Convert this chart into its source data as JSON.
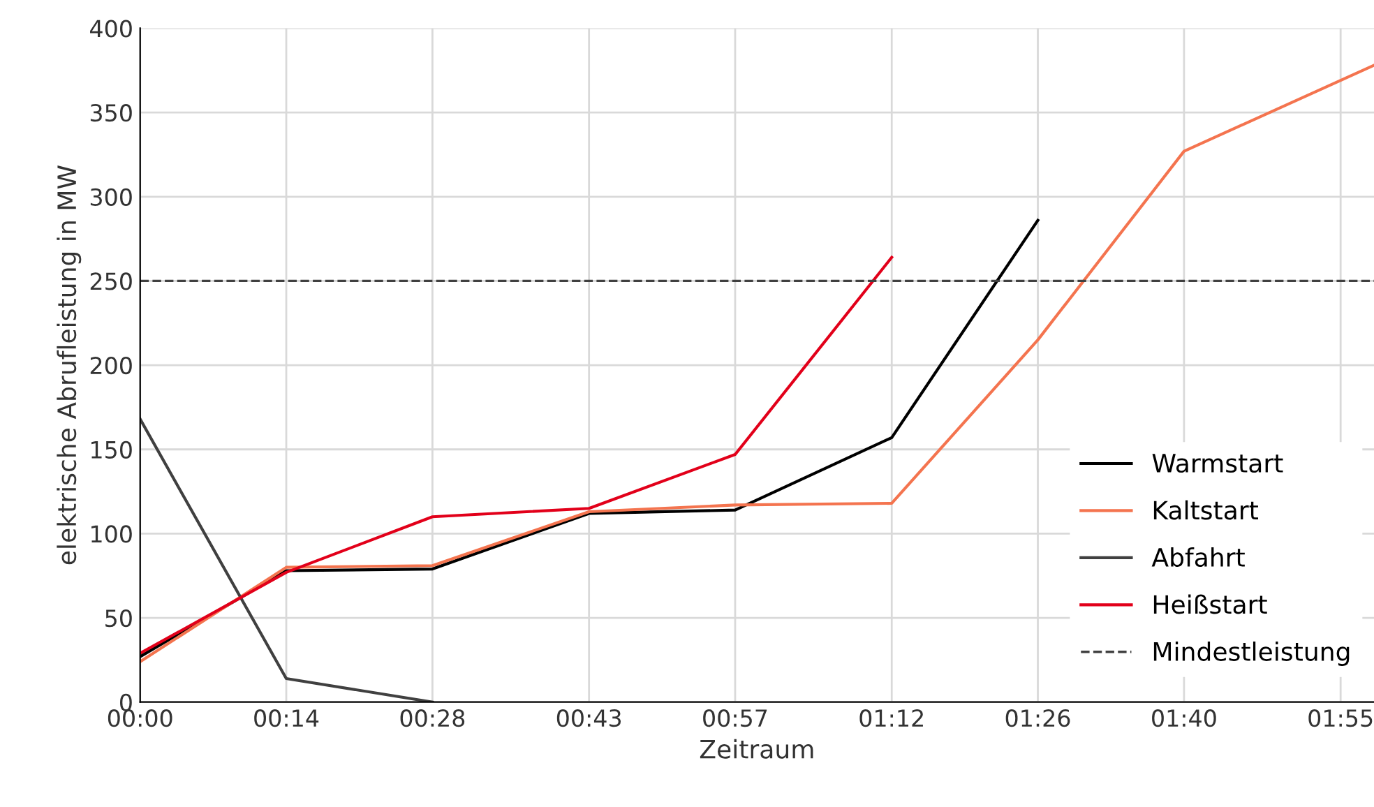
{
  "chart_data": {
    "type": "line",
    "xlabel": "Zeitraum",
    "ylabel": "elektrische Abrufleistung in MW",
    "xlim": [
      0,
      1.97
    ],
    "ylim": [
      0,
      400
    ],
    "xticks": [
      {
        "value": 0,
        "label": "00:00"
      },
      {
        "value": 0.2333,
        "label": "00:14"
      },
      {
        "value": 0.4667,
        "label": "00:28"
      },
      {
        "value": 0.7167,
        "label": "00:43"
      },
      {
        "value": 0.95,
        "label": "00:57"
      },
      {
        "value": 1.2,
        "label": "01:12"
      },
      {
        "value": 1.4333,
        "label": "01:26"
      },
      {
        "value": 1.6667,
        "label": "01:40"
      },
      {
        "value": 1.9167,
        "label": "01:55"
      }
    ],
    "yticks": [
      0,
      50,
      100,
      150,
      200,
      250,
      300,
      350,
      400
    ],
    "series": [
      {
        "name": "Warmstart",
        "color": "#000000",
        "x": [
          0,
          0.2333,
          0.4667,
          0.7167,
          0.95,
          1.2,
          1.4333
        ],
        "values": [
          27,
          78,
          79,
          112,
          114,
          157,
          286
        ]
      },
      {
        "name": "Kaltstart",
        "color": "#f4744f",
        "x": [
          0,
          0.2333,
          0.4667,
          0.7167,
          0.95,
          1.2,
          1.4333,
          1.6667,
          1.97
        ],
        "values": [
          24,
          80,
          81,
          113,
          117,
          118,
          215,
          327,
          378
        ]
      },
      {
        "name": "Abfahrt",
        "color": "#404040",
        "x": [
          0,
          0.2333,
          0.4667
        ],
        "values": [
          168,
          14,
          0
        ]
      },
      {
        "name": "Heißstart",
        "color": "#e2001a",
        "x": [
          0,
          0.2333,
          0.4667,
          0.7167,
          0.95,
          1.2
        ],
        "values": [
          29,
          77,
          110,
          115,
          147,
          264
        ]
      }
    ],
    "ref_lines": [
      {
        "axis": "y",
        "value": 250,
        "label": "Mindestleistung",
        "color": "#404040",
        "line_style": "dashed"
      }
    ],
    "grid": true,
    "legend": "bottom right",
    "marker": "none",
    "line_style": "solid"
  }
}
